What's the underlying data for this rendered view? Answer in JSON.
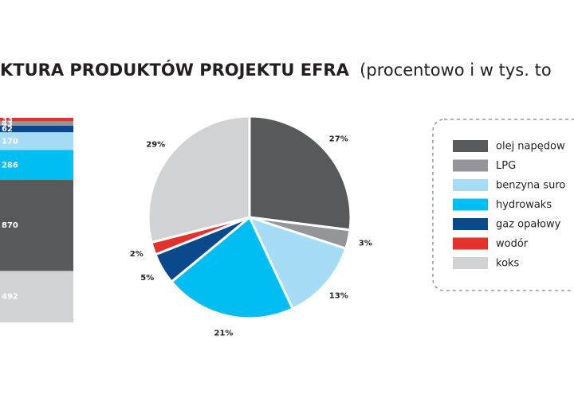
{
  "title": "KTURA PRODUKTÓW PROJEKTU EFRA",
  "subtitle": "(procentowo i w tys. to",
  "chart_data": [
    {
      "type": "stacked-bar",
      "values": [
        492,
        870,
        286,
        170,
        62,
        43,
        33
      ],
      "colors": [
        "#d1d2d4",
        "#58595b",
        "#00bdf2",
        "#a6dcf6",
        "#0a4a8c",
        "#939598",
        "#e3312d"
      ]
    },
    {
      "type": "pie",
      "categories": [
        "olej napędow",
        "LPG",
        "benzyna suro",
        "hydrowaks",
        "gaz opałowy",
        "wodór",
        "koks"
      ],
      "values": [
        27,
        3,
        13,
        21,
        5,
        2,
        29
      ],
      "value_labels": [
        "27%",
        "3%",
        "13%",
        "21%",
        "5%",
        "2%",
        "29%"
      ],
      "colors": [
        "#58595b",
        "#939598",
        "#a6dcf6",
        "#00bdf2",
        "#0a4a8c",
        "#e3312d",
        "#d1d2d4"
      ]
    }
  ]
}
